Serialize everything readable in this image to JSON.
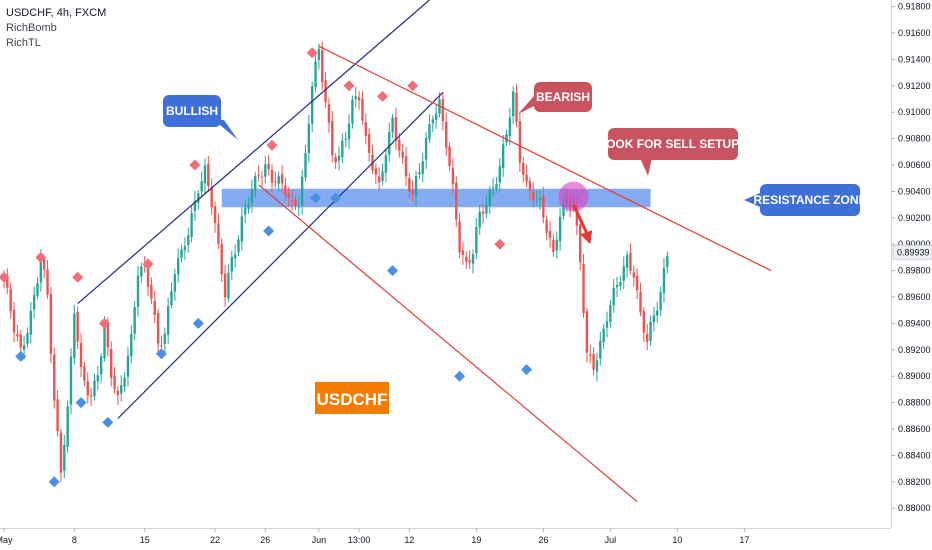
{
  "header": {
    "symbol_line": "USDCHF, 4h, FXCM",
    "indicator_1": "RichBomb",
    "indicator_2": "RichTL"
  },
  "colors": {
    "up": "#26a69a",
    "down": "#ef5350",
    "bull_line": "#1e2a8a",
    "bear_line": "#e53935",
    "zone": "#6f9cf0",
    "buy_marker": "#4a90e2",
    "sell_marker": "#f06e75",
    "bull_label": "#3f6fd8",
    "bear_label": "#c9545f",
    "symbol_badge": "#f57c00",
    "highlight": "#e040c0"
  },
  "annotations": {
    "bullish": "BULLISH",
    "bearish": "BEARISH",
    "sell_setups": "LOOK FOR SELL SETUPS",
    "resistance": "RESISTANCE ZONE",
    "symbol": "USDCHF"
  },
  "chart_data": {
    "type": "candlestick",
    "title": "USDCHF, 4h, FXCM",
    "ylim": [
      0.8785,
      0.9185
    ],
    "y_ticks": [
      "0.91800",
      "0.91600",
      "0.91400",
      "0.91200",
      "0.91000",
      "0.90800",
      "0.90600",
      "0.90400",
      "0.90200",
      "0.90000",
      "0.89800",
      "0.89600",
      "0.89400",
      "0.89200",
      "0.89000",
      "0.88800",
      "0.88600",
      "0.88400",
      "0.88200",
      "0.88000"
    ],
    "x_ticks": [
      {
        "label": "May",
        "bar": 0
      },
      {
        "label": "8",
        "bar": 21
      },
      {
        "label": "15",
        "bar": 42
      },
      {
        "label": "22",
        "bar": 63
      },
      {
        "label": "26",
        "bar": 78
      },
      {
        "label": "Jun",
        "bar": 94
      },
      {
        "label": "13:00",
        "bar": 106
      },
      {
        "label": "12",
        "bar": 121
      },
      {
        "label": "19",
        "bar": 141
      },
      {
        "label": "26",
        "bar": 161
      },
      {
        "label": "Jul",
        "bar": 181
      },
      {
        "label": "10",
        "bar": 201
      },
      {
        "label": "17",
        "bar": 221
      }
    ],
    "last_price": "0.89939",
    "candles_note": "one candle per 4-hour bar, OHLC approximated from the pixels",
    "anchors": [
      [
        0,
        0.8974
      ],
      [
        3,
        0.8935
      ],
      [
        5,
        0.8918
      ],
      [
        8,
        0.8948
      ],
      [
        11,
        0.8988
      ],
      [
        13,
        0.896
      ],
      [
        15,
        0.888
      ],
      [
        17,
        0.8832
      ],
      [
        19,
        0.8875
      ],
      [
        21,
        0.895
      ],
      [
        23,
        0.89
      ],
      [
        26,
        0.8885
      ],
      [
        28,
        0.8905
      ],
      [
        30,
        0.8935
      ],
      [
        32,
        0.89
      ],
      [
        34,
        0.888
      ],
      [
        36,
        0.8905
      ],
      [
        38,
        0.893
      ],
      [
        40,
        0.898
      ],
      [
        42,
        0.8978
      ],
      [
        44,
        0.896
      ],
      [
        46,
        0.8925
      ],
      [
        48,
        0.8935
      ],
      [
        51,
        0.898
      ],
      [
        53,
        0.899
      ],
      [
        55,
        0.901
      ],
      [
        58,
        0.9045
      ],
      [
        60,
        0.9055
      ],
      [
        62,
        0.903
      ],
      [
        64,
        0.8995
      ],
      [
        66,
        0.8965
      ],
      [
        68,
        0.899
      ],
      [
        70,
        0.9005
      ],
      [
        72,
        0.9025
      ],
      [
        74,
        0.904
      ],
      [
        76,
        0.9055
      ],
      [
        78,
        0.906
      ],
      [
        80,
        0.905
      ],
      [
        82,
        0.9045
      ],
      [
        84,
        0.904
      ],
      [
        86,
        0.903
      ],
      [
        88,
        0.9035
      ],
      [
        90,
        0.9065
      ],
      [
        92,
        0.912
      ],
      [
        94,
        0.9145
      ],
      [
        96,
        0.911
      ],
      [
        98,
        0.907
      ],
      [
        100,
        0.9065
      ],
      [
        102,
        0.908
      ],
      [
        104,
        0.9105
      ],
      [
        106,
        0.9115
      ],
      [
        108,
        0.908
      ],
      [
        110,
        0.906
      ],
      [
        112,
        0.904
      ],
      [
        114,
        0.907
      ],
      [
        116,
        0.9095
      ],
      [
        118,
        0.9075
      ],
      [
        120,
        0.905
      ],
      [
        122,
        0.9035
      ],
      [
        124,
        0.9055
      ],
      [
        126,
        0.908
      ],
      [
        128,
        0.91
      ],
      [
        130,
        0.9105
      ],
      [
        132,
        0.9075
      ],
      [
        134,
        0.904
      ],
      [
        136,
        0.9
      ],
      [
        138,
        0.8985
      ],
      [
        140,
        0.8995
      ],
      [
        142,
        0.902
      ],
      [
        144,
        0.903
      ],
      [
        146,
        0.9045
      ],
      [
        148,
        0.906
      ],
      [
        150,
        0.9085
      ],
      [
        152,
        0.911
      ],
      [
        154,
        0.9065
      ],
      [
        156,
        0.9045
      ],
      [
        158,
        0.904
      ],
      [
        160,
        0.903
      ],
      [
        162,
        0.901
      ],
      [
        164,
        0.899
      ],
      [
        166,
        0.9025
      ],
      [
        168,
        0.9035
      ],
      [
        170,
        0.903
      ],
      [
        172,
        0.8985
      ],
      [
        174,
        0.8915
      ],
      [
        176,
        0.891
      ],
      [
        178,
        0.8925
      ],
      [
        180,
        0.8945
      ],
      [
        182,
        0.896
      ],
      [
        184,
        0.8975
      ],
      [
        186,
        0.899
      ],
      [
        188,
        0.898
      ],
      [
        190,
        0.8945
      ],
      [
        192,
        0.8925
      ],
      [
        194,
        0.8945
      ],
      [
        196,
        0.8965
      ],
      [
        198,
        0.8995
      ]
    ],
    "buy_markers": [
      [
        0.8915,
        5
      ],
      [
        0.882,
        15
      ],
      [
        0.888,
        23
      ],
      [
        0.8865,
        31
      ],
      [
        0.8917,
        47
      ],
      [
        0.894,
        58
      ],
      [
        0.901,
        79
      ],
      [
        0.9035,
        93
      ],
      [
        0.9035,
        99
      ],
      [
        0.898,
        116
      ],
      [
        0.89,
        136
      ],
      [
        0.8905,
        156
      ]
    ],
    "sell_markers": [
      [
        0.8975,
        0
      ],
      [
        0.899,
        11
      ],
      [
        0.8975,
        22
      ],
      [
        0.894,
        30
      ],
      [
        0.8985,
        43
      ],
      [
        0.906,
        57
      ],
      [
        0.9075,
        80
      ],
      [
        0.9145,
        92
      ],
      [
        0.912,
        103
      ],
      [
        0.9112,
        113
      ],
      [
        0.912,
        122
      ],
      [
        0.9,
        148
      ]
    ],
    "lines": [
      {
        "kind": "bull_channel_upper",
        "from": [
          22,
          0.8955
        ],
        "to": [
          127,
          0.9185
        ]
      },
      {
        "kind": "bull_channel_lower",
        "from": [
          34,
          0.8868
        ],
        "to": [
          131,
          0.9115
        ]
      },
      {
        "kind": "bear_channel_upper",
        "from": [
          94,
          0.915
        ],
        "to": [
          229,
          0.898
        ]
      },
      {
        "kind": "bear_channel_lower",
        "from": [
          76,
          0.9045
        ],
        "to": [
          189,
          0.8805
        ]
      }
    ],
    "resistance_zone": {
      "from_bar": 65,
      "to_bar": 193,
      "y_low": 0.9028,
      "y_high": 0.9042
    },
    "highlight": {
      "bar": 170,
      "y": 0.9036
    },
    "arrow": {
      "from": [
        170,
        0.903
      ],
      "to": [
        175,
        0.9
      ]
    }
  }
}
